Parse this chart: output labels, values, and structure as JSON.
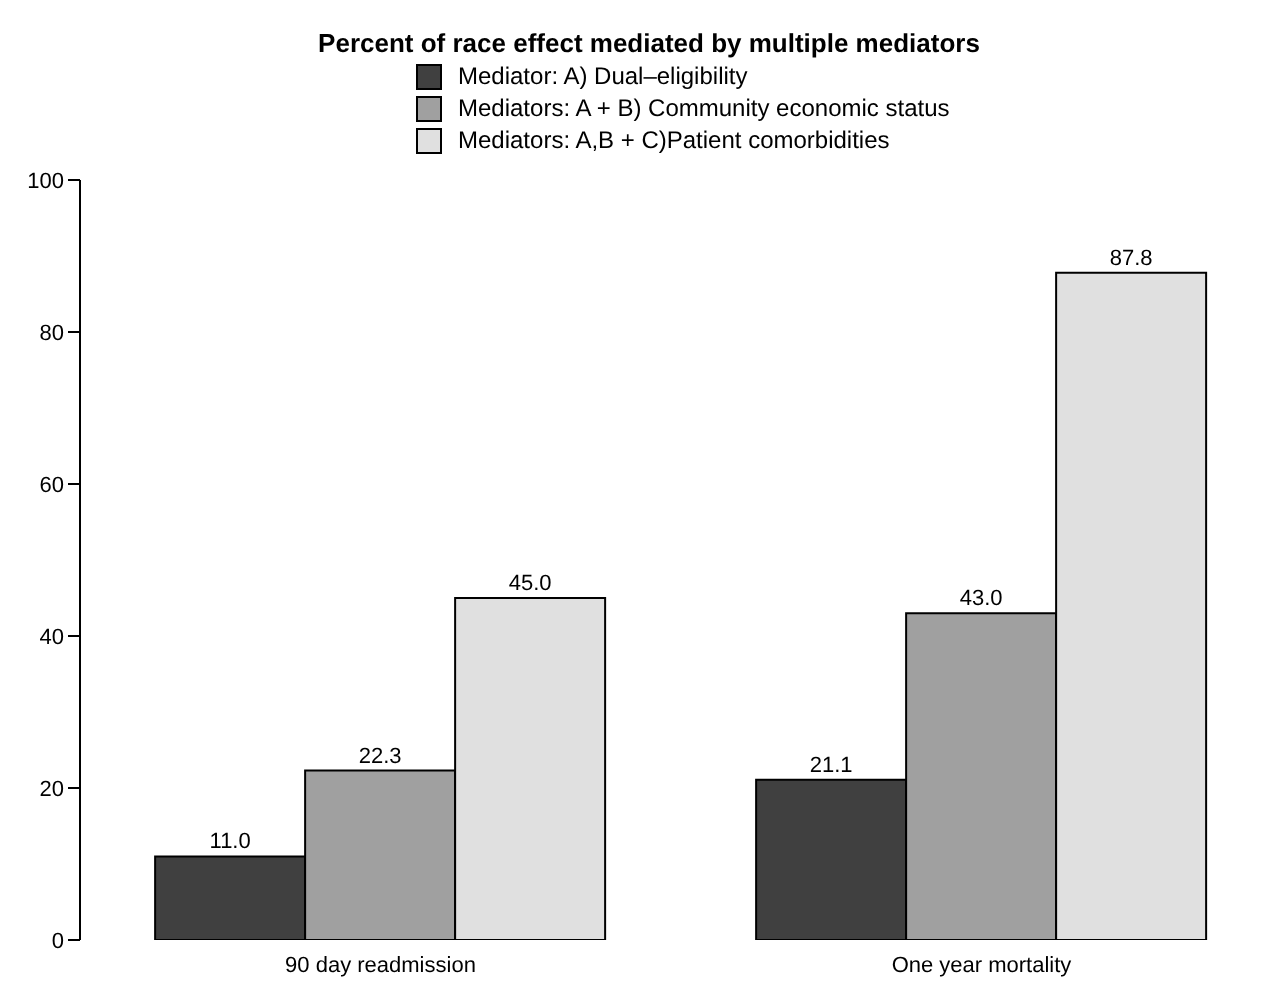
{
  "chart_data": {
    "type": "bar",
    "title": "Percent of race effect mediated by multiple mediators",
    "categories": [
      "90 day readmission",
      "One year mortality"
    ],
    "series": [
      {
        "name": "Mediator: A) Dual–eligibility",
        "color": "#404040",
        "values": [
          11.0,
          21.1
        ],
        "value_labels": [
          "11.0",
          "21.1"
        ]
      },
      {
        "name": "Mediators: A + B) Community economic status",
        "color": "#a0a0a0",
        "values": [
          22.3,
          43.0
        ],
        "value_labels": [
          "22.3",
          "43.0"
        ]
      },
      {
        "name": "Mediators: A,B + C)Patient comorbidities",
        "color": "#e0e0e0",
        "values": [
          45.0,
          87.8
        ],
        "value_labels": [
          "45.0",
          "87.8"
        ]
      }
    ],
    "ylim": [
      0,
      100
    ],
    "yticks": [
      0,
      20,
      40,
      60,
      80,
      100
    ],
    "grid": false,
    "legend": "top"
  }
}
